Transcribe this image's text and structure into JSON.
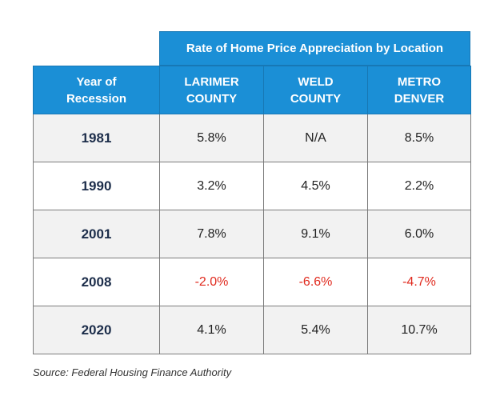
{
  "chart_data": {
    "type": "table",
    "title": "Rate of Home Price Appreciation by Location",
    "columns": [
      "Year of Recession",
      "LARIMER COUNTY",
      "WELD COUNTY",
      "METRO DENVER"
    ],
    "rows": [
      {
        "year": "1981",
        "cells": [
          {
            "text": "5.8%",
            "negative": false
          },
          {
            "text": "N/A",
            "negative": false
          },
          {
            "text": "8.5%",
            "negative": false
          }
        ]
      },
      {
        "year": "1990",
        "cells": [
          {
            "text": "3.2%",
            "negative": false
          },
          {
            "text": "4.5%",
            "negative": false
          },
          {
            "text": "2.2%",
            "negative": false
          }
        ]
      },
      {
        "year": "2001",
        "cells": [
          {
            "text": "7.8%",
            "negative": false
          },
          {
            "text": "9.1%",
            "negative": false
          },
          {
            "text": "6.0%",
            "negative": false
          }
        ]
      },
      {
        "year": "2008",
        "cells": [
          {
            "text": "-2.0%",
            "negative": true
          },
          {
            "text": "-6.6%",
            "negative": true
          },
          {
            "text": "-4.7%",
            "negative": true
          }
        ]
      },
      {
        "year": "2020",
        "cells": [
          {
            "text": "4.1%",
            "negative": false
          },
          {
            "text": "5.4%",
            "negative": false
          },
          {
            "text": "10.7%",
            "negative": false
          }
        ]
      }
    ],
    "source": "Source:  Federal Housing Finance Authority"
  },
  "header": {
    "year_line1": "Year of",
    "year_line2": "Recession",
    "col1_line1": "LARIMER",
    "col1_line2": "COUNTY",
    "col2_line1": "WELD",
    "col2_line2": "COUNTY",
    "col3_line1": "METRO",
    "col3_line2": "DENVER"
  },
  "colors": {
    "header_blue": "#1b8fd6",
    "negative_red": "#e02a1e",
    "year_navy": "#1c2d4a",
    "row_stripe": "#f2f2f2"
  }
}
